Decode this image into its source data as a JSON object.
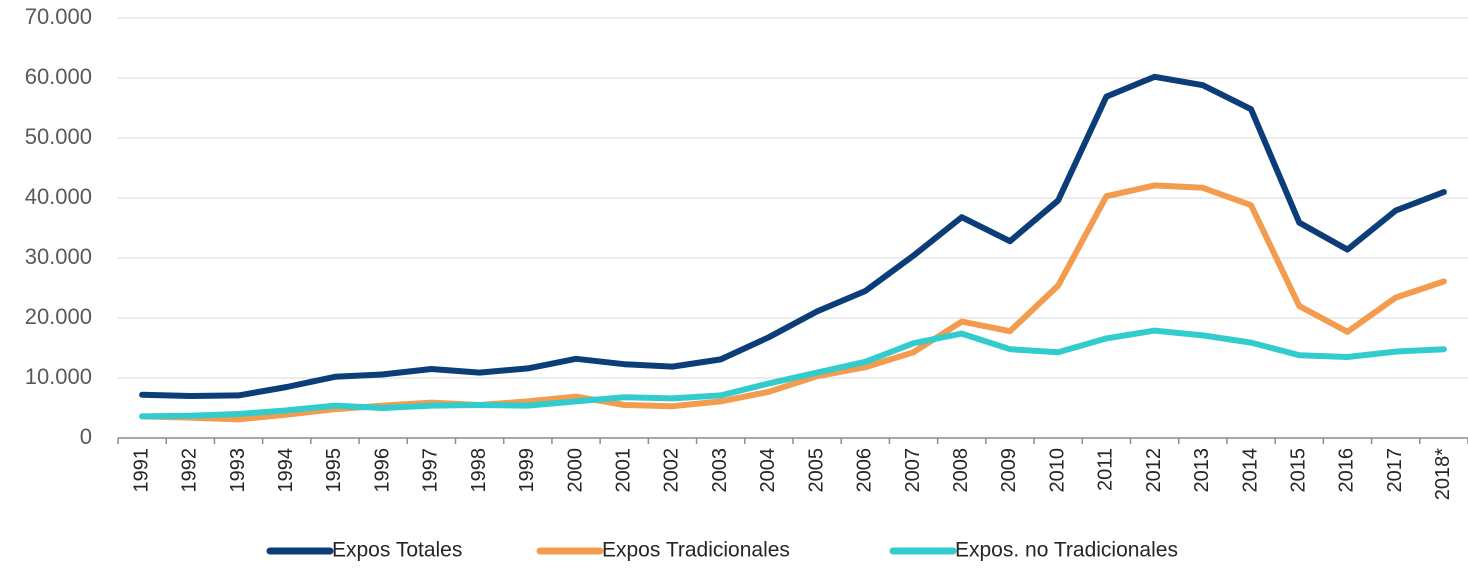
{
  "chart_data": {
    "type": "line",
    "categories": [
      "1991",
      "1992",
      "1993",
      "1994",
      "1995",
      "1996",
      "1997",
      "1998",
      "1999",
      "2000",
      "2001",
      "2002",
      "2003",
      "2004",
      "2005",
      "2006",
      "2007",
      "2008",
      "2009",
      "2010",
      "2011",
      "2012",
      "2013",
      "2014",
      "2015",
      "2016",
      "2017",
      "2018*"
    ],
    "series": [
      {
        "name": "Expos Totales",
        "color": "#0b3d78",
        "values": [
          7200,
          7000,
          7100,
          8500,
          10200,
          10600,
          11500,
          10900,
          11600,
          13200,
          12300,
          11900,
          13100,
          16800,
          21100,
          24500,
          30400,
          36800,
          32800,
          39600,
          56900,
          60200,
          58800,
          54800,
          35900,
          31400,
          37900,
          41000
        ]
      },
      {
        "name": "Expos Tradicionales",
        "color": "#f39b4f",
        "values": [
          3600,
          3400,
          3100,
          3900,
          4800,
          5400,
          5900,
          5500,
          6100,
          6900,
          5500,
          5300,
          6100,
          7700,
          10300,
          11800,
          14300,
          19400,
          17800,
          25400,
          40300,
          42100,
          41700,
          38800,
          22000,
          17700,
          23400,
          26100
        ]
      },
      {
        "name": "Expos. no Tradicionales",
        "color": "#33cccc",
        "values": [
          3600,
          3700,
          4000,
          4600,
          5400,
          5000,
          5400,
          5500,
          5400,
          6100,
          6800,
          6600,
          7100,
          9100,
          10900,
          12700,
          15800,
          17400,
          14800,
          14300,
          16600,
          17900,
          17100,
          15900,
          13800,
          13500,
          14400,
          14800
        ]
      }
    ],
    "ylim": [
      0,
      70000
    ],
    "yticks": [
      0,
      {
        "value": 10000,
        "label": "10.000"
      },
      {
        "value": 20000,
        "label": "20.000"
      },
      {
        "value": 30000,
        "label": "30.000"
      },
      {
        "value": 40000,
        "label": "40.000"
      },
      {
        "value": 50000,
        "label": "50.000"
      },
      {
        "value": 60000,
        "label": "60.000"
      },
      {
        "value": 70000,
        "label": "70.000"
      }
    ],
    "grid": true,
    "legend": "bottom"
  }
}
